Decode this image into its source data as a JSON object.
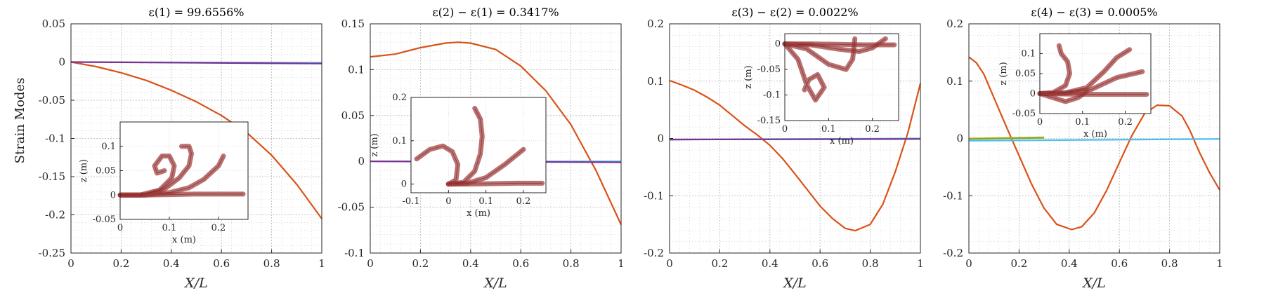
{
  "figure": {
    "ylabel": "Strain Modes"
  },
  "chart_data": [
    {
      "type": "line",
      "title": "ε(1) = 99.6556%",
      "xlabel": "X/L",
      "xlim": [
        0,
        1
      ],
      "ylim": [
        -0.25,
        0.05
      ],
      "xticks": [
        "0",
        "0.2",
        "0.4",
        "0.6",
        "0.8",
        "1"
      ],
      "yticks": [
        "0.05",
        "0",
        "-0.05",
        "-0.1",
        "-0.15",
        "-0.2",
        "-0.25"
      ],
      "grid": true,
      "series": [
        {
          "color": "#D95319",
          "x": [
            0,
            0.1,
            0.2,
            0.3,
            0.4,
            0.5,
            0.6,
            0.7,
            0.8,
            0.9,
            1.0
          ],
          "y": [
            0,
            -0.006,
            -0.014,
            -0.024,
            -0.037,
            -0.052,
            -0.07,
            -0.092,
            -0.122,
            -0.16,
            -0.205
          ]
        },
        {
          "color": "#4DBEEE",
          "x": [
            0,
            1
          ],
          "y": [
            0,
            -0.001
          ]
        },
        {
          "color": "#7E2F8E",
          "x": [
            0,
            1
          ],
          "y": [
            0,
            -0.002
          ]
        }
      ],
      "inset": {
        "xlabel": "x (m)",
        "ylabel": "z (m)",
        "xlim": [
          0,
          0.26
        ],
        "ylim": [
          -0.05,
          0.15
        ],
        "xticks": [
          "0",
          "0.1",
          "0.2"
        ],
        "yticks": [
          "0.1",
          "0.05",
          "0",
          "-0.05"
        ],
        "color": "#9E3A3A",
        "curves": [
          {
            "x": [
              0,
              0.05,
              0.1,
              0.15,
              0.2,
              0.25
            ],
            "y": [
              0,
              0,
              0.001,
              0.002,
              0.002,
              0.002
            ]
          },
          {
            "x": [
              0,
              0.05,
              0.1,
              0.14,
              0.17,
              0.2,
              0.21
            ],
            "y": [
              0,
              0,
              0.005,
              0.015,
              0.032,
              0.06,
              0.08
            ]
          },
          {
            "x": [
              0,
              0.05,
              0.09,
              0.12,
              0.14,
              0.145,
              0.14,
              0.125
            ],
            "y": [
              0,
              0,
              0.012,
              0.035,
              0.06,
              0.085,
              0.1,
              0.1
            ]
          },
          {
            "x": [
              0,
              0.04,
              0.08,
              0.105,
              0.11,
              0.1,
              0.085,
              0.07,
              0.075,
              0.09
            ],
            "y": [
              0,
              0,
              0.01,
              0.035,
              0.06,
              0.08,
              0.08,
              0.06,
              0.045,
              0.05
            ]
          }
        ]
      }
    },
    {
      "type": "line",
      "title": "ε(2) − ε(1) = 0.3417%",
      "xlabel": "X/L",
      "xlim": [
        0,
        1
      ],
      "ylim": [
        -0.1,
        0.15
      ],
      "xticks": [
        "0",
        "0.2",
        "0.4",
        "0.6",
        "0.8",
        "1"
      ],
      "yticks": [
        "0.15",
        "0.1",
        "0.05",
        "0",
        "-0.05",
        "-0.1"
      ],
      "grid": true,
      "series": [
        {
          "color": "#D95319",
          "x": [
            0,
            0.1,
            0.2,
            0.3,
            0.35,
            0.4,
            0.5,
            0.6,
            0.7,
            0.8,
            0.9,
            1.0
          ],
          "y": [
            0.114,
            0.117,
            0.124,
            0.129,
            0.13,
            0.129,
            0.122,
            0.104,
            0.077,
            0.04,
            -0.01,
            -0.069
          ]
        },
        {
          "color": "#4DBEEE",
          "x": [
            0,
            1
          ],
          "y": [
            0,
            0
          ]
        },
        {
          "color": "#7E2F8E",
          "x": [
            0,
            1
          ],
          "y": [
            0,
            -0.001
          ]
        }
      ],
      "inset": {
        "xlabel": "x (m)",
        "ylabel": "z (m)",
        "xlim": [
          -0.1,
          0.26
        ],
        "ylim": [
          -0.02,
          0.2
        ],
        "xticks": [
          "-0.1",
          "0",
          "0.1",
          "0.2"
        ],
        "yticks": [
          "0.2",
          "0.1",
          "0"
        ],
        "color": "#9E3A3A",
        "curves": [
          {
            "x": [
              0,
              0.06,
              0.12,
              0.18,
              0.25
            ],
            "y": [
              0,
              0,
              0.001,
              0.002,
              0.002
            ]
          },
          {
            "x": [
              0,
              0.05,
              0.1,
              0.15,
              0.2
            ],
            "y": [
              0,
              0.002,
              0.015,
              0.045,
              0.08
            ]
          },
          {
            "x": [
              0,
              0.04,
              0.07,
              0.085,
              0.09,
              0.085,
              0.07
            ],
            "y": [
              0,
              0.004,
              0.03,
              0.07,
              0.11,
              0.15,
              0.175
            ]
          },
          {
            "x": [
              0,
              0.02,
              0.025,
              0.01,
              -0.015,
              -0.05,
              -0.085
            ],
            "y": [
              0,
              0.01,
              0.045,
              0.075,
              0.088,
              0.08,
              0.058
            ]
          }
        ]
      }
    },
    {
      "type": "line",
      "title": "ε(3) − ε(2) = 0.0022%",
      "xlabel": "X/L",
      "xlim": [
        0,
        1
      ],
      "ylim": [
        -0.2,
        0.2
      ],
      "xticks": [
        "0",
        "0.2",
        "0.4",
        "0.6",
        "0.8",
        "1"
      ],
      "yticks": [
        "0.2",
        "0.1",
        "0",
        "-0.1",
        "-0.2"
      ],
      "grid": true,
      "series": [
        {
          "color": "#D95319",
          "x": [
            0,
            0.05,
            0.1,
            0.15,
            0.2,
            0.25,
            0.3,
            0.35,
            0.4,
            0.45,
            0.5,
            0.55,
            0.6,
            0.65,
            0.7,
            0.74,
            0.8,
            0.85,
            0.9,
            0.95,
            1.0
          ],
          "y": [
            0.101,
            0.093,
            0.084,
            0.072,
            0.058,
            0.04,
            0.022,
            0.006,
            -0.012,
            -0.035,
            -0.062,
            -0.09,
            -0.118,
            -0.14,
            -0.157,
            -0.161,
            -0.15,
            -0.115,
            -0.058,
            0.01,
            0.096
          ]
        },
        {
          "color": "#4DBEEE",
          "x": [
            0,
            1
          ],
          "y": [
            -0.002,
            0
          ]
        },
        {
          "color": "#7E2F8E",
          "x": [
            0,
            1
          ],
          "y": [
            -0.002,
            -0.001
          ]
        }
      ],
      "inset": {
        "xlabel": "x (m)",
        "ylabel": "z (m)",
        "xlim": [
          0,
          0.26
        ],
        "ylim": [
          -0.15,
          0.02
        ],
        "xticks": [
          "0",
          "0.1",
          "0.2"
        ],
        "yticks": [
          "0",
          "-0.05",
          "-0.1",
          "-0.15"
        ],
        "color": "#9E3A3A",
        "curves": [
          {
            "x": [
              0,
              0.06,
              0.12,
              0.18,
              0.25
            ],
            "y": [
              0,
              0,
              -0.001,
              -0.002,
              -0.002
            ]
          },
          {
            "x": [
              0,
              0.06,
              0.12,
              0.17,
              0.2,
              0.23
            ],
            "y": [
              0,
              -0.002,
              -0.01,
              -0.015,
              -0.008,
              0.01
            ]
          },
          {
            "x": [
              0,
              0.05,
              0.1,
              0.14,
              0.155,
              0.16
            ],
            "y": [
              0,
              -0.01,
              -0.04,
              -0.05,
              -0.03,
              0.01
            ]
          },
          {
            "x": [
              0,
              0.03,
              0.05,
              0.07,
              0.09,
              0.075,
              0.055,
              0.045
            ],
            "y": [
              0,
              -0.03,
              -0.08,
              -0.11,
              -0.085,
              -0.06,
              -0.07,
              -0.09
            ]
          }
        ]
      }
    },
    {
      "type": "line",
      "title": "ε(4) − ε(3) = 0.0005%",
      "xlabel": "X/L",
      "xlim": [
        0,
        1
      ],
      "ylim": [
        -0.2,
        0.2
      ],
      "xticks": [
        "0",
        "0.2",
        "0.4",
        "0.6",
        "0.8",
        "1"
      ],
      "yticks": [
        "0.2",
        "0.1",
        "0",
        "-0.1",
        "-0.2"
      ],
      "grid": true,
      "series": [
        {
          "color": "#D95319",
          "x": [
            0,
            0.03,
            0.06,
            0.1,
            0.15,
            0.2,
            0.25,
            0.3,
            0.35,
            0.41,
            0.45,
            0.5,
            0.55,
            0.6,
            0.65,
            0.7,
            0.75,
            0.8,
            0.85,
            0.88,
            0.92,
            0.96,
            1.0
          ],
          "y": [
            0.142,
            0.132,
            0.112,
            0.071,
            0.02,
            -0.03,
            -0.08,
            -0.122,
            -0.15,
            -0.159,
            -0.154,
            -0.13,
            -0.09,
            -0.042,
            0.005,
            0.043,
            0.058,
            0.057,
            0.039,
            0.015,
            -0.025,
            -0.06,
            -0.09
          ]
        },
        {
          "color": "#EDB120",
          "x": [
            0,
            0.3
          ],
          "y": [
            0.0,
            0.002
          ]
        },
        {
          "color": "#77AC30",
          "x": [
            0,
            0.3
          ],
          "y": [
            -0.001,
            0.001
          ]
        },
        {
          "color": "#4DBEEE",
          "x": [
            0,
            1
          ],
          "y": [
            -0.004,
            -0.001
          ]
        }
      ],
      "inset": {
        "xlabel": "x (m)",
        "ylabel": "z (m)",
        "xlim": [
          0,
          0.26
        ],
        "ylim": [
          -0.05,
          0.15
        ],
        "xticks": [
          "0",
          "0.1",
          "0.2"
        ],
        "yticks": [
          "0.1",
          "0.05",
          "0",
          "-0.05"
        ],
        "color": "#9E3A3A",
        "curves": [
          {
            "x": [
              0,
              0.06,
              0.12,
              0.18,
              0.25
            ],
            "y": [
              0,
              -0.001,
              -0.002,
              -0.002,
              -0.002
            ]
          },
          {
            "x": [
              0,
              0.06,
              0.12,
              0.18,
              0.24
            ],
            "y": [
              0,
              0.001,
              0.01,
              0.04,
              0.055
            ]
          },
          {
            "x": [
              0,
              0.06,
              0.11,
              0.15,
              0.18,
              0.21
            ],
            "y": [
              0,
              0.002,
              0.015,
              0.055,
              0.09,
              0.11
            ]
          },
          {
            "x": [
              0,
              0.03,
              0.06,
              0.07,
              0.065,
              0.05,
              0.045
            ],
            "y": [
              0,
              0.002,
              0.02,
              0.05,
              0.08,
              0.1,
              0.12
            ]
          },
          {
            "x": [
              0,
              0.03,
              0.06,
              0.09,
              0.11
            ],
            "y": [
              0,
              -0.01,
              -0.02,
              -0.01,
              0.005
            ]
          }
        ]
      }
    }
  ]
}
